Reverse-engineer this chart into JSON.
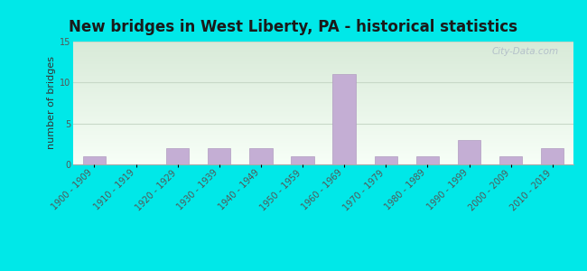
{
  "title": "New bridges in West Liberty, PA - historical statistics",
  "ylabel": "number of bridges",
  "categories": [
    "1900 - 1909",
    "1910 - 1919",
    "1920 - 1929",
    "1930 - 1939",
    "1940 - 1949",
    "1950 - 1959",
    "1960 - 1969",
    "1970 - 1979",
    "1980 - 1989",
    "1990 - 1999",
    "2000 - 2009",
    "2010 - 2019"
  ],
  "values": [
    1,
    0,
    2,
    2,
    2,
    1,
    11,
    1,
    1,
    3,
    1,
    2
  ],
  "bar_color": "#c4aed4",
  "bar_edgecolor": "#b09cc0",
  "background_outer": "#00e8e8",
  "background_plot_top_left": "#d8ead8",
  "background_plot_top_right": "#e8f4ec",
  "background_plot_bottom": "#f0f8f0",
  "grid_color": "#c8d8c8",
  "title_fontsize": 12,
  "ylabel_fontsize": 8,
  "tick_fontsize": 7,
  "ylim": [
    0,
    15
  ],
  "yticks": [
    0,
    5,
    10,
    15
  ],
  "watermark": "City-Data.com"
}
